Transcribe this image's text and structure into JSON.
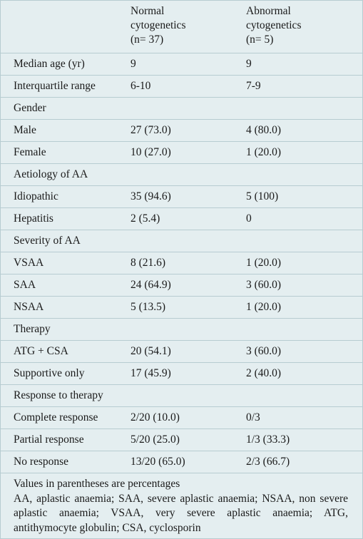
{
  "header": {
    "col1": "",
    "col2_lines": [
      "Normal",
      "cytogenetics",
      "(n= 37)"
    ],
    "col3_lines": [
      "Abnormal",
      "cytogenetics",
      "(n= 5)"
    ]
  },
  "rows": [
    {
      "type": "row",
      "label": "Median age (yr)",
      "normal": "9",
      "abnormal": "9"
    },
    {
      "type": "row",
      "label": "Interquartile range",
      "normal": "6-10",
      "abnormal": "7-9"
    },
    {
      "type": "section",
      "label": "Gender"
    },
    {
      "type": "row",
      "label": "Male",
      "normal": "27 (73.0)",
      "abnormal": "4 (80.0)"
    },
    {
      "type": "row",
      "label": "Female",
      "normal": "10 (27.0)",
      "abnormal": "1 (20.0)"
    },
    {
      "type": "section",
      "label": "Aetiology of AA"
    },
    {
      "type": "row",
      "label": "Idiopathic",
      "normal": "35 (94.6)",
      "abnormal": "5 (100)"
    },
    {
      "type": "row",
      "label": "Hepatitis",
      "normal": "2 (5.4)",
      "abnormal": "0"
    },
    {
      "type": "section",
      "label": "Severity of AA"
    },
    {
      "type": "row",
      "label": "VSAA",
      "normal": "8 (21.6)",
      "abnormal": "1 (20.0)"
    },
    {
      "type": "row",
      "label": "SAA",
      "normal": "24 (64.9)",
      "abnormal": "3 (60.0)"
    },
    {
      "type": "row",
      "label": "NSAA",
      "normal": "5 (13.5)",
      "abnormal": "1 (20.0)"
    },
    {
      "type": "section",
      "label": "Therapy"
    },
    {
      "type": "row",
      "label": "ATG + CSA",
      "normal": "20 (54.1)",
      "abnormal": "3 (60.0)"
    },
    {
      "type": "row",
      "label": "Supportive only",
      "normal": "17 (45.9)",
      "abnormal": "2 (40.0)"
    },
    {
      "type": "section",
      "label": "Response to therapy"
    },
    {
      "type": "row",
      "label": "Complete response",
      "normal": "2/20 (10.0)",
      "abnormal": "0/3"
    },
    {
      "type": "row",
      "label": "Partial response",
      "normal": "5/20 (25.0)",
      "abnormal": "1/3 (33.3)"
    },
    {
      "type": "row",
      "label": "No response",
      "normal": "13/20 (65.0)",
      "abnormal": "2/3 (66.7)"
    }
  ],
  "footnote": {
    "line1": "Values in parentheses are percentages",
    "line2": "AA, aplastic anaemia; SAA, severe aplastic anaemia; NSAA, non severe aplastic anaemia; VSAA, very severe aplastic anaemia; ATG, antithymocyte globulin; CSA, cyclosporin"
  }
}
